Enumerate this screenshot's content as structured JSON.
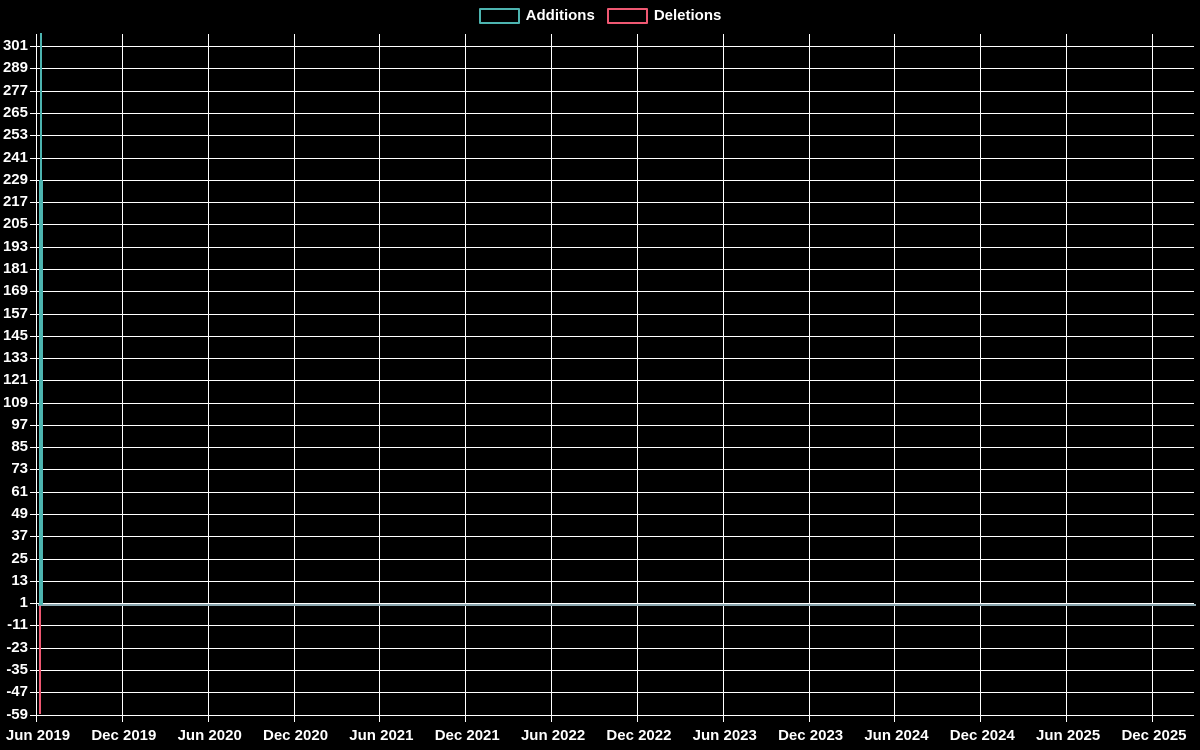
{
  "page": {
    "background_color": "#000000",
    "text_color": "#ffffff",
    "gridline_color": "#ffffff"
  },
  "legend": {
    "items": [
      {
        "label": "Additions",
        "color": "#4db4b0"
      },
      {
        "label": "Deletions",
        "color": "#ef5872"
      }
    ]
  },
  "chart_data": {
    "type": "line",
    "title": "",
    "legend": [
      "Additions",
      "Deletions"
    ],
    "legend_position": "top-center",
    "background": "#000000",
    "grid": true,
    "gridline_color": "#ffffff",
    "zero_line_color": "#8ba7b0",
    "x_tick_labels": [
      "Jun 2019",
      "Dec 2019",
      "Jun 2020",
      "Dec 2020",
      "Jun 2021",
      "Dec 2021",
      "Jun 2022",
      "Dec 2022",
      "Jun 2023",
      "Dec 2023",
      "Jun 2024",
      "Dec 2024",
      "Jun 2025",
      "Dec 2025"
    ],
    "y_tick_labels": [
      301,
      289,
      277,
      265,
      253,
      241,
      229,
      217,
      205,
      193,
      181,
      169,
      157,
      145,
      133,
      121,
      109,
      97,
      85,
      73,
      61,
      49,
      37,
      25,
      13,
      1,
      -11,
      -23,
      -35,
      -47,
      -59
    ],
    "y_tick_interval": 12,
    "y_range": [
      -59,
      308
    ],
    "series": [
      {
        "name": "Additions",
        "color": "#4db4b0",
        "points": [
          {
            "x": "Jun 2019 (first week)",
            "y": 308
          },
          {
            "x": "Jun 2019 (second week)",
            "y": 229
          },
          {
            "x": "all later weeks through Dec 2025",
            "y": 0
          }
        ]
      },
      {
        "name": "Deletions",
        "color": "#ef5872",
        "points": [
          {
            "x": "Jun 2019 (first week)",
            "y": -59
          },
          {
            "x": "all later weeks through Dec 2025",
            "y": 0
          }
        ]
      }
    ]
  }
}
